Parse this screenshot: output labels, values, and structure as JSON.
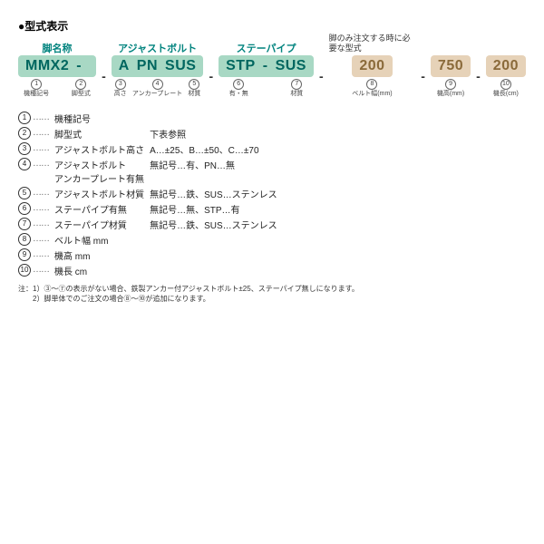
{
  "title": "●型式表示",
  "groups": [
    {
      "header": "脚名称",
      "band_color": "green",
      "segments": [
        {
          "code": "MMX2",
          "num": "1",
          "label": "機種記号"
        },
        {
          "code": "-",
          "num": "",
          "label": ""
        },
        {
          "code": " ",
          "num": "2",
          "label": "脚型式"
        }
      ]
    },
    {
      "header": "アジャストボルト",
      "band_color": "green",
      "segments": [
        {
          "code": "A",
          "num": "3",
          "label": "高さ"
        },
        {
          "code": "PN",
          "num": "4",
          "label": "アンカープレート"
        },
        {
          "code": "SUS",
          "num": "5",
          "label": "材質"
        }
      ]
    },
    {
      "header": "ステーパイプ",
      "band_color": "green",
      "segments": [
        {
          "code": "STP",
          "num": "6",
          "label": "有・無"
        },
        {
          "code": "-",
          "num": "",
          "label": ""
        },
        {
          "code": "SUS",
          "num": "7",
          "label": "材質"
        }
      ]
    }
  ],
  "right_note": "脚のみ注文する時に必要な型式",
  "right_groups": [
    {
      "code": "200",
      "num": "8",
      "label": "ベルト幅(mm)"
    },
    {
      "code": "750",
      "num": "9",
      "label": "機高(mm)"
    },
    {
      "code": "200",
      "num": "10",
      "label": "機長(cm)"
    }
  ],
  "defs": [
    {
      "num": "1",
      "name": "機種記号",
      "desc": ""
    },
    {
      "num": "2",
      "name": "脚型式",
      "desc": "下表参照"
    },
    {
      "num": "3",
      "name": "アジャストボルト高さ",
      "desc": "A…±25、B…±50、C…±70"
    },
    {
      "num": "4",
      "name": "アジャストボルト\nアンカープレート有無",
      "desc": "無記号…有、PN…無"
    },
    {
      "num": "5",
      "name": "アジャストボルト材質",
      "desc": "無記号…鉄、SUS…ステンレス"
    },
    {
      "num": "6",
      "name": "ステーパイプ有無",
      "desc": "無記号…無、STP…有"
    },
    {
      "num": "7",
      "name": "ステーパイプ材質",
      "desc": "無記号…鉄、SUS…ステンレス"
    },
    {
      "num": "8",
      "name": "ベルト幅 mm",
      "desc": ""
    },
    {
      "num": "9",
      "name": "機高 mm",
      "desc": ""
    },
    {
      "num": "10",
      "name": "機長 cm",
      "desc": ""
    }
  ],
  "notes": [
    "注：1）③～⑦の表示がない場合、鉄製アンカー付アジャストボルト±25、ステーパイプ無しになります。",
    "　　2）脚単体でのご注文の場合⑧～⑩が追加になります。"
  ]
}
